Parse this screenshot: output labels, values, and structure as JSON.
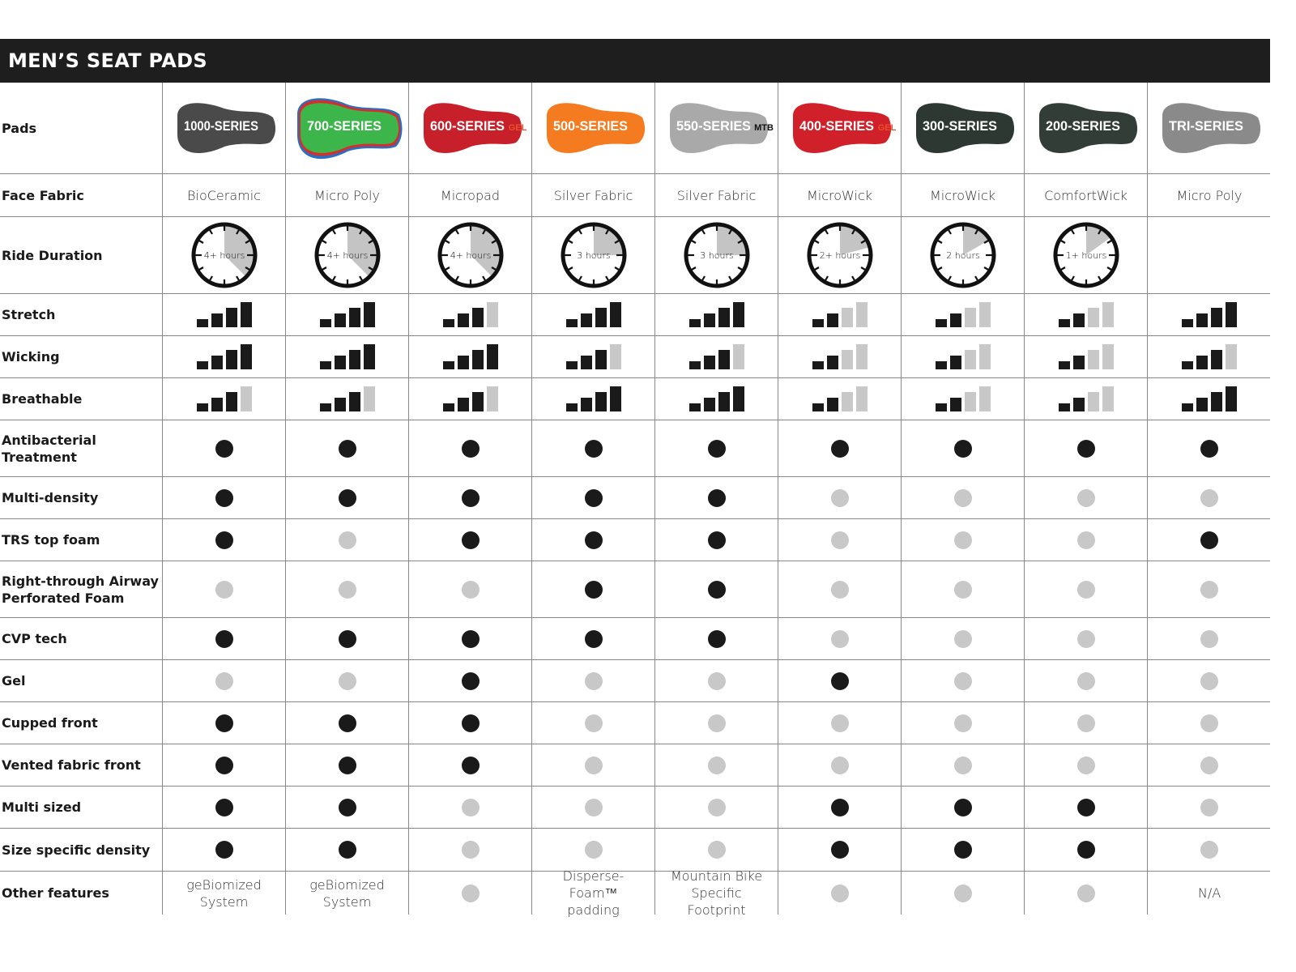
{
  "title": "MEN’S SEAT PADS",
  "colors": {
    "on": "#1a1a1a",
    "off": "#c8c8c8",
    "header_bg": "#1e1e1e"
  },
  "pads": [
    {
      "name": "1000-SERIES",
      "color": "#4a4a4a",
      "suffix": ""
    },
    {
      "name": "700-SERIES",
      "color": "#3cb54a",
      "suffix": ""
    },
    {
      "name": "600-SERIES",
      "color": "#c8202a",
      "suffix": "GEL"
    },
    {
      "name": "500-SERIES",
      "color": "#f47b20",
      "suffix": ""
    },
    {
      "name": "550-SERIES",
      "color": "#a9a9a9",
      "suffix": "MTB"
    },
    {
      "name": "400-SERIES",
      "color": "#d0202a",
      "suffix": "GEL"
    },
    {
      "name": "300-SERIES",
      "color": "#2d3832",
      "suffix": ""
    },
    {
      "name": "200-SERIES",
      "color": "#333d38",
      "suffix": ""
    },
    {
      "name": "TRI-SERIES",
      "color": "#8a8a8a",
      "suffix": ""
    }
  ],
  "labels": {
    "pads": "Pads",
    "face_fabric": "Face Fabric",
    "ride_duration": "Ride Duration",
    "stretch": "Stretch",
    "wicking": "Wicking",
    "breathable": "Breathable",
    "other": "Other features"
  },
  "face_fabric": [
    "BioCeramic",
    "Micro Poly",
    "Micropad",
    "Silver Fabric",
    "Silver Fabric",
    "MicroWick",
    "MicroWick",
    "ComfortWick",
    "Micro Poly"
  ],
  "ride_duration": [
    {
      "label": "4+ hours",
      "hours": 4.5
    },
    {
      "label": "4+ hours",
      "hours": 4.5
    },
    {
      "label": "4+ hours",
      "hours": 4.5
    },
    {
      "label": "3 hours",
      "hours": 3
    },
    {
      "label": "3 hours",
      "hours": 3
    },
    {
      "label": "2+ hours",
      "hours": 2.5
    },
    {
      "label": "2 hours",
      "hours": 2
    },
    {
      "label": "1+ hours",
      "hours": 1.8
    },
    null
  ],
  "ratings_max": 4,
  "stretch": [
    4,
    4,
    3,
    4,
    4,
    2,
    2,
    2,
    4
  ],
  "wicking": [
    4,
    4,
    4,
    3,
    3,
    2,
    2,
    2,
    3
  ],
  "breathable": [
    3,
    3,
    3,
    4,
    4,
    2,
    2,
    2,
    4
  ],
  "features": [
    {
      "label": "Antibacterial Treatment",
      "values": [
        1,
        1,
        1,
        1,
        1,
        1,
        1,
        1,
        1
      ]
    },
    {
      "label": "Multi-density",
      "values": [
        1,
        1,
        1,
        1,
        1,
        0,
        0,
        0,
        0
      ]
    },
    {
      "label": "TRS top foam",
      "values": [
        1,
        0,
        1,
        1,
        1,
        0,
        0,
        0,
        1
      ]
    },
    {
      "label": "Right-through Airway Perforated Foam",
      "values": [
        0,
        0,
        0,
        1,
        1,
        0,
        0,
        0,
        0
      ]
    },
    {
      "label": "CVP tech",
      "values": [
        1,
        1,
        1,
        1,
        1,
        0,
        0,
        0,
        0
      ]
    },
    {
      "label": "Gel",
      "values": [
        0,
        0,
        1,
        0,
        0,
        1,
        0,
        0,
        0
      ]
    },
    {
      "label": "Cupped front",
      "values": [
        1,
        1,
        1,
        0,
        0,
        0,
        0,
        0,
        0
      ]
    },
    {
      "label": "Vented fabric front",
      "values": [
        1,
        1,
        1,
        0,
        0,
        0,
        0,
        0,
        0
      ]
    },
    {
      "label": "Multi sized",
      "values": [
        1,
        1,
        0,
        0,
        0,
        1,
        1,
        1,
        0
      ]
    },
    {
      "label": "Size specific density",
      "values": [
        1,
        1,
        0,
        0,
        0,
        1,
        1,
        1,
        0
      ]
    }
  ],
  "other_features": [
    "geBiomized System",
    "geBiomized System",
    null,
    "Disperse-Foam™ padding",
    "Mountain Bike Specific Footprint",
    null,
    null,
    null,
    "N/A"
  ]
}
